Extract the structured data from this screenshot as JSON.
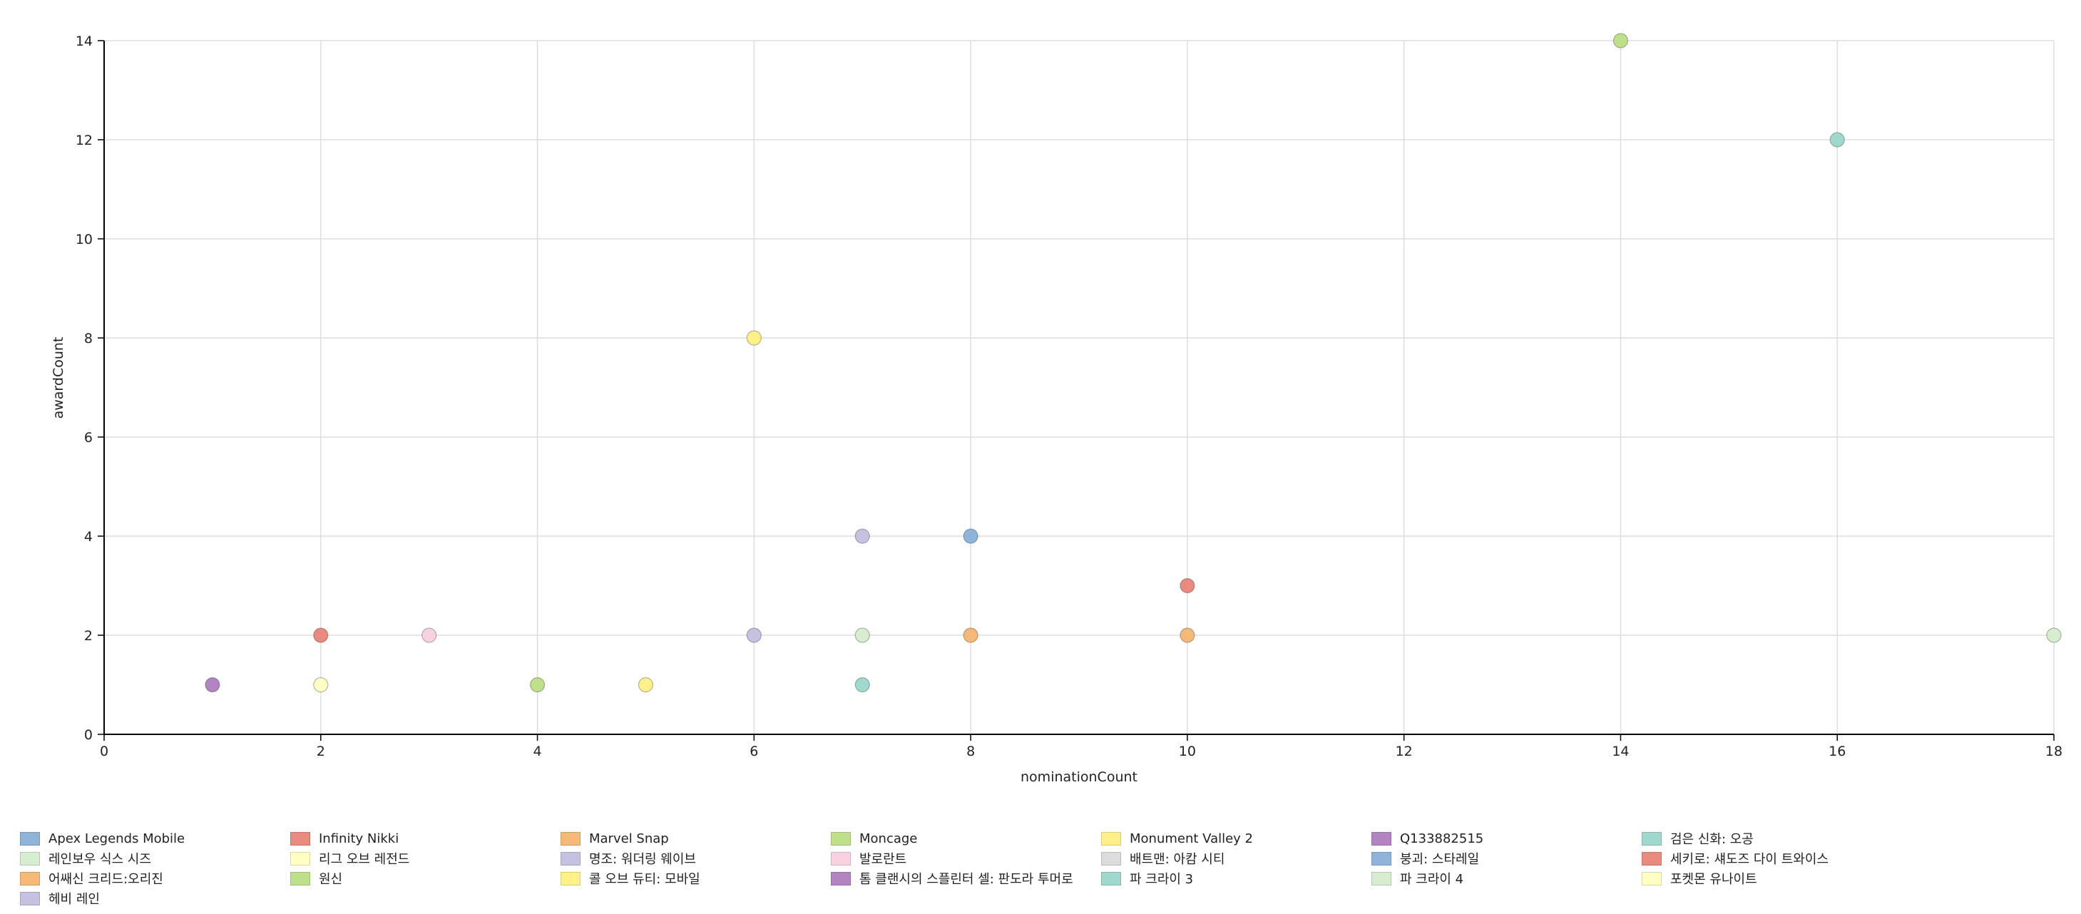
{
  "chart_data": {
    "type": "scatter",
    "title": "",
    "xlabel": "nominationCount",
    "ylabel": "awardCount",
    "xlim": [
      0,
      18
    ],
    "ylim": [
      0,
      14
    ],
    "xticks": [
      "0",
      "2",
      "4",
      "6",
      "8",
      "10",
      "12",
      "14",
      "16",
      "18"
    ],
    "yticks": [
      "0",
      "2",
      "4",
      "6",
      "8",
      "10",
      "12",
      "14"
    ],
    "grid": true,
    "legend_position": "bottom",
    "series": [
      {
        "name": "Apex Legends Mobile",
        "color": "#8fb3d9",
        "points": [
          {
            "x": 8,
            "y": 4
          }
        ]
      },
      {
        "name": "Infinity Nikki",
        "color": "#e88a7e",
        "points": [
          {
            "x": 10,
            "y": 3
          }
        ]
      },
      {
        "name": "Marvel Snap",
        "color": "#f5b877",
        "points": [
          {
            "x": 8,
            "y": 2
          }
        ]
      },
      {
        "name": "Moncage",
        "color": "#bfe08a",
        "points": [
          {
            "x": 4,
            "y": 1
          }
        ]
      },
      {
        "name": "Monument Valley 2",
        "color": "#fff089",
        "points": [
          {
            "x": 6,
            "y": 8
          }
        ]
      },
      {
        "name": "Q133882515",
        "color": "#b384c2",
        "points": [
          {
            "x": 1,
            "y": 1
          }
        ]
      },
      {
        "name": "검은 신화: 오공",
        "color": "#9fd8cd",
        "points": [
          {
            "x": 16,
            "y": 12
          }
        ]
      },
      {
        "name": "레인보우 식스 시즈",
        "color": "#d6edcf",
        "points": [
          {
            "x": 7,
            "y": 2
          }
        ]
      },
      {
        "name": "리그 오브 레전드",
        "color": "#ffffc4",
        "points": [
          {
            "x": 2,
            "y": 1
          }
        ]
      },
      {
        "name": "명조: 워더링 웨이브",
        "color": "#c4c2e0",
        "points": [
          {
            "x": 6,
            "y": 2
          }
        ]
      },
      {
        "name": "발로란트",
        "color": "#f8d2e3",
        "points": [
          {
            "x": 3,
            "y": 2
          }
        ]
      },
      {
        "name": "배트맨: 아캄 시티",
        "color": "#dcdcdc",
        "points": []
      },
      {
        "name": "붕괴: 스타레일",
        "color": "#8fb3d9",
        "points": []
      },
      {
        "name": "세키로: 섀도즈 다이 트와이스",
        "color": "#e88a7e",
        "points": [
          {
            "x": 2,
            "y": 2
          }
        ]
      },
      {
        "name": "어쌔신 크리드:오리진",
        "color": "#f5b877",
        "points": [
          {
            "x": 10,
            "y": 2
          }
        ]
      },
      {
        "name": "원신",
        "color": "#bfe08a",
        "points": [
          {
            "x": 14,
            "y": 14
          }
        ]
      },
      {
        "name": "콜 오브 듀티: 모바일",
        "color": "#fff089",
        "points": [
          {
            "x": 5,
            "y": 1
          }
        ]
      },
      {
        "name": "톰 클랜시의 스플린터 셀: 판도라 투머로",
        "color": "#b384c2",
        "points": []
      },
      {
        "name": "파 크라이 3",
        "color": "#9fd8cd",
        "points": [
          {
            "x": 7,
            "y": 1
          }
        ]
      },
      {
        "name": "파 크라이 4",
        "color": "#d6edcf",
        "points": [
          {
            "x": 18,
            "y": 2
          }
        ]
      },
      {
        "name": "포켓몬 유나이트",
        "color": "#ffffc4",
        "points": []
      },
      {
        "name": "헤비 레인",
        "color": "#c4c2e0",
        "points": [
          {
            "x": 7,
            "y": 4
          }
        ]
      }
    ]
  }
}
